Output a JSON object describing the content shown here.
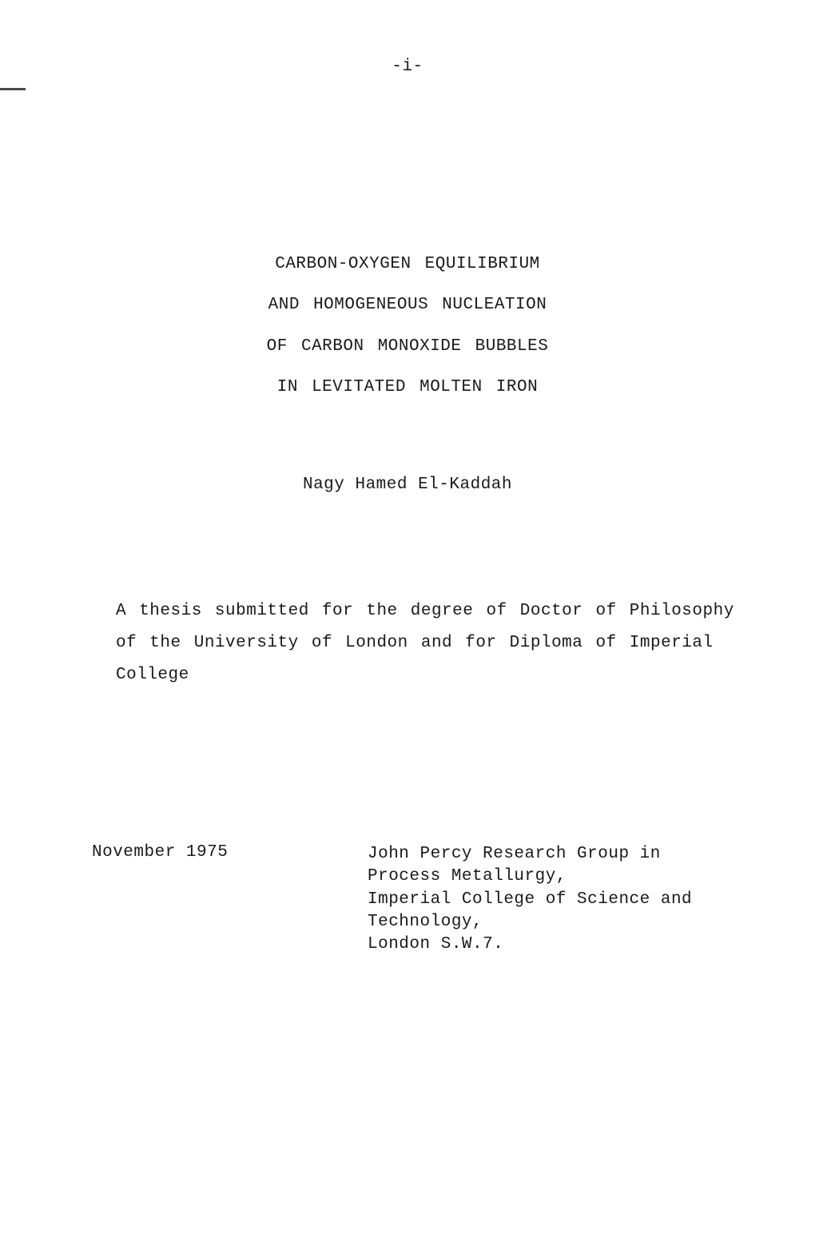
{
  "page_number": "-i-",
  "title": {
    "line1": "CARBON-OXYGEN EQUILIBRIUM",
    "line2": "AND HOMOGENEOUS NUCLEATION",
    "line3": "OF CARBON MONOXIDE BUBBLES",
    "line4": "IN LEVITATED MOLTEN IRON"
  },
  "author": "Nagy Hamed El-Kaddah",
  "description": "A thesis submitted for the degree of Doctor of Philosophy of the University of London and for Diploma of Imperial College",
  "date": "November 1975",
  "address": {
    "line1": "John Percy Research Group in",
    "line2": "Process Metallurgy,",
    "line3": "Imperial College of Science and",
    "line4": "Technology,",
    "line5": "London S.W.7."
  },
  "colors": {
    "background": "#ffffff",
    "text": "#1a1a1a",
    "binding_mark": "#4a4a4a"
  },
  "typography": {
    "font_family": "Courier New",
    "font_size": 21,
    "title_line_height": 2.45,
    "description_line_height": 1.9,
    "address_line_height": 1.35
  }
}
